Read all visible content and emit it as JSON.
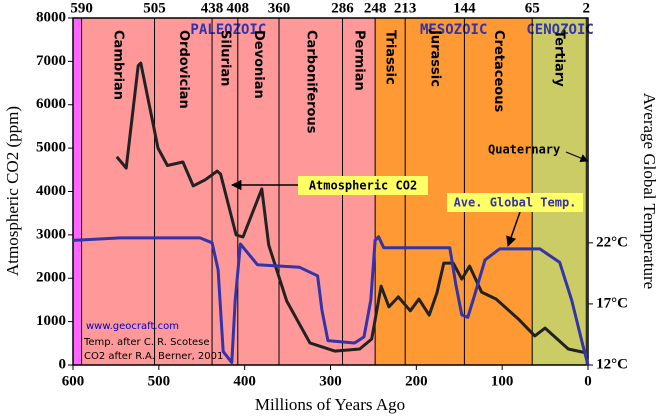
{
  "chart_data": {
    "type": "line",
    "x_label": "Millions of Years Ago",
    "y_label": "Atmospheric CO2 (ppm)",
    "y2_label": "Average Global Temperature",
    "xlim": [
      600,
      0
    ],
    "xticks": [
      600,
      500,
      400,
      300,
      200,
      100,
      0
    ],
    "ylim": [
      0,
      8000
    ],
    "yticks": [
      0,
      1000,
      2000,
      3000,
      4000,
      5000,
      6000,
      7000,
      8000
    ],
    "y2lim": [
      12,
      40.4
    ],
    "y2ticks": [
      {
        "value": 12,
        "label": "12°C"
      },
      {
        "value": 17,
        "label": "17°C"
      },
      {
        "value": 22,
        "label": "22°C"
      }
    ],
    "top_ticks": [
      590,
      505,
      438,
      408,
      360,
      286,
      248,
      213,
      144,
      65,
      2
    ],
    "periods": [
      "Cambrian",
      "Ordovician",
      "Silurian",
      "Devonian",
      "Carboniferous",
      "Permian",
      "Triassic",
      "Jurassic",
      "Cretaceous",
      "Tertiary"
    ],
    "background_color": "#ff66ff",
    "eras": [
      {
        "name": "PALEOZOIC",
        "from": 590,
        "to": 248,
        "color": "#ff9999"
      },
      {
        "name": "MESOZOIC",
        "from": 248,
        "to": 65,
        "color": "#ff9933"
      },
      {
        "name": "CENOZOIC",
        "from": 65,
        "to": 0,
        "color": "#cccc66"
      }
    ],
    "quaternary_label": "Quaternary",
    "source_url": "www.geocraft.com",
    "credits": [
      "Temp. after C. R. Scotese",
      "CO2 after R.A. Berner, 2001"
    ],
    "series": [
      {
        "name": "Atmospheric CO2",
        "color": "#222222",
        "x": [
          549,
          538,
          524,
          521,
          501,
          490,
          472,
          460,
          446,
          432,
          428,
          410,
          402,
          380,
          372,
          351,
          324,
          295,
          266,
          252,
          241,
          232,
          221,
          207,
          197,
          185,
          176,
          168,
          157,
          147,
          138,
          124,
          107,
          80,
          62,
          50,
          23,
          2
        ],
        "values": [
          4800,
          4540,
          6900,
          6960,
          5000,
          4600,
          4680,
          4130,
          4270,
          4470,
          4400,
          3000,
          2950,
          4060,
          2770,
          1475,
          510,
          320,
          370,
          600,
          1820,
          1340,
          1570,
          1250,
          1520,
          1150,
          1660,
          2350,
          2350,
          1980,
          2280,
          1680,
          1520,
          1040,
          670,
          850,
          370,
          280
        ]
      },
      {
        "name": "Ave. Global Temp.",
        "color": "#3333aa",
        "axis": "y2",
        "x": [
          600,
          545,
          452,
          438,
          431,
          425,
          415,
          411,
          405,
          385,
          336,
          315,
          310,
          303,
          272,
          261,
          253,
          248,
          244,
          238,
          161,
          154,
          147,
          140,
          133,
          120,
          103,
          56,
          33,
          19,
          6,
          0
        ],
        "values": [
          22.2,
          22.4,
          22.4,
          22.0,
          19.8,
          13.1,
          12.2,
          17.3,
          21.9,
          20.2,
          20.0,
          19.3,
          16.5,
          14.0,
          13.8,
          14.3,
          17.3,
          22.2,
          22.5,
          21.6,
          21.6,
          18.6,
          16.1,
          15.9,
          17.5,
          20.6,
          21.5,
          21.5,
          20.4,
          17.3,
          13.6,
          12.0
        ]
      }
    ]
  }
}
